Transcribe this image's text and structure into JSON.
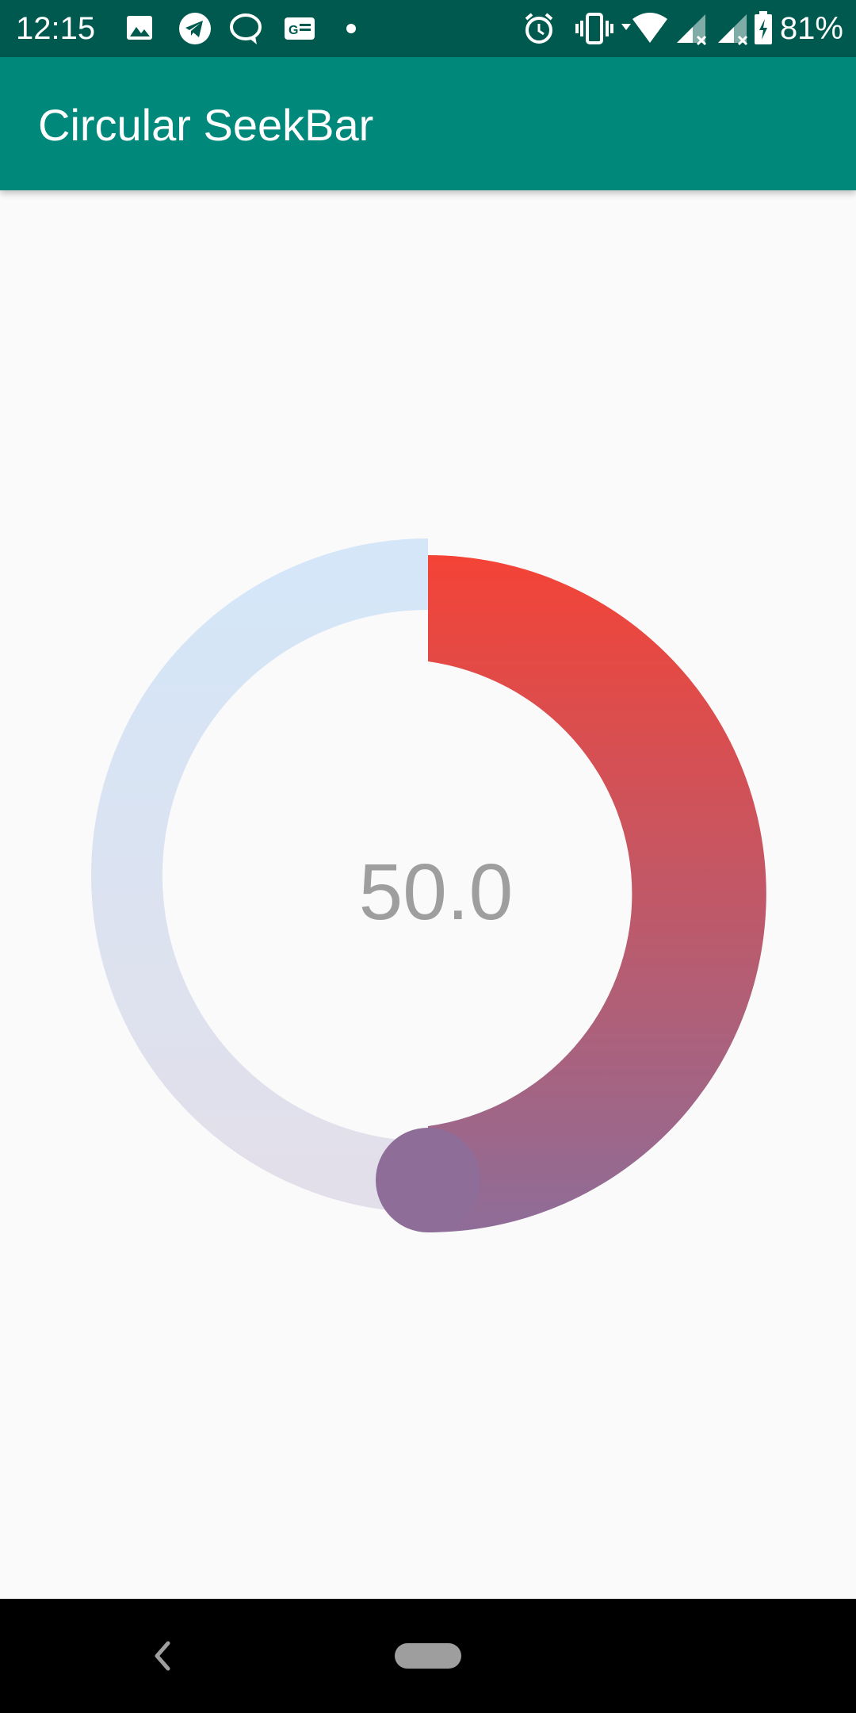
{
  "status_bar": {
    "time": "12:15",
    "battery": "81%",
    "icons_left": [
      "image-icon",
      "telegram-icon",
      "chat-bubble-icon",
      "news-icon",
      "dot-icon"
    ],
    "icons_right": [
      "alarm-icon",
      "vibrate-icon",
      "wifi-icon",
      "signal-icon",
      "signal-icon",
      "battery-charging-icon"
    ],
    "background": "#00594F"
  },
  "app_bar": {
    "title": "Circular SeekBar",
    "background": "#00897B"
  },
  "seekbar": {
    "value_text": "50.0",
    "progress": 0.5,
    "track_gradient": [
      "#D4E6F8",
      "#E2DFEA"
    ],
    "progress_gradient": [
      "#F44336",
      "#8E6D98"
    ],
    "thumb_color": "#8E6D98",
    "value_color": "#9E9E9E"
  },
  "nav_bar": {
    "icons": [
      "back-icon",
      "home-pill-icon"
    ],
    "background": "#000000"
  }
}
